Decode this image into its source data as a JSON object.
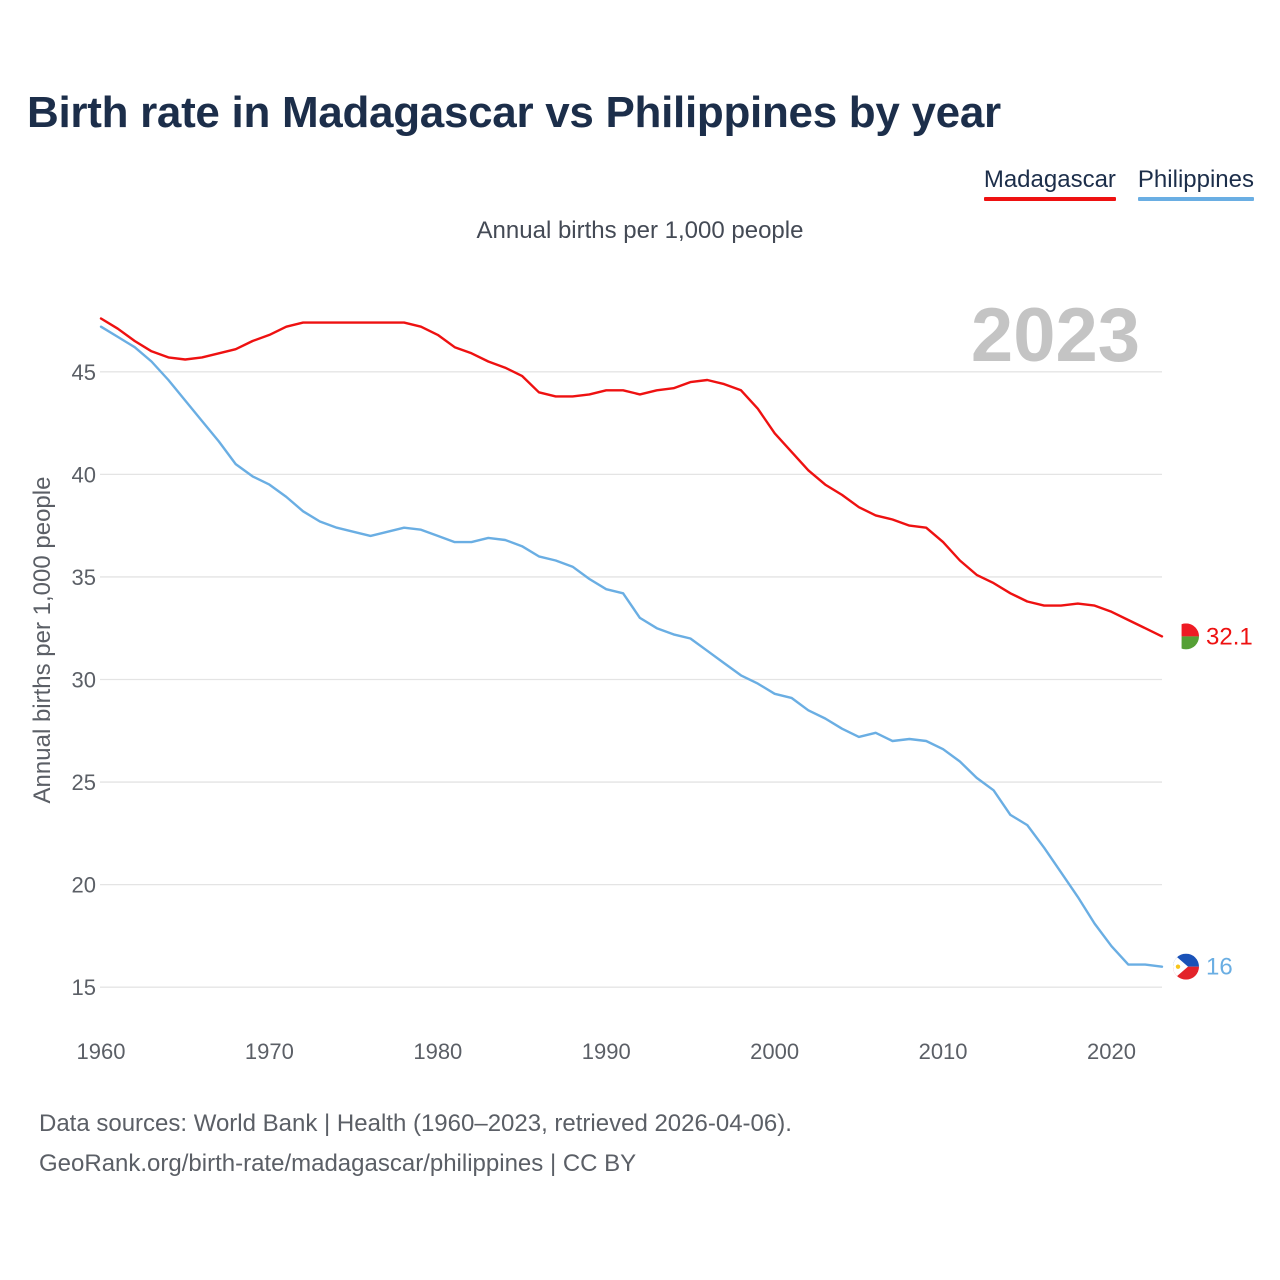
{
  "title": "Birth rate in Madagascar vs Philippines by year",
  "footer": {
    "line1": "Data sources: World Bank | Health (1960–2023, retrieved 2026-04-06).",
    "line2": "GeoRank.org/birth-rate/madagascar/philippines | CC BY"
  },
  "chart_data": {
    "type": "line",
    "title": "Birth rate in Madagascar vs Philippines by year",
    "subtitle": "Annual births per 1,000 people",
    "xlabel": "",
    "ylabel": "Annual births per 1,000 people",
    "year_label": "2023",
    "xlim": [
      1960,
      2023
    ],
    "ylim": [
      13.4,
      48.5
    ],
    "x_ticks": [
      1960,
      1970,
      1980,
      1990,
      2000,
      2010,
      2020
    ],
    "y_ticks": [
      15,
      20,
      25,
      30,
      35,
      40,
      45
    ],
    "grid": true,
    "legend_position": "top-right",
    "x": [
      1960,
      1961,
      1962,
      1963,
      1964,
      1965,
      1966,
      1967,
      1968,
      1969,
      1970,
      1971,
      1972,
      1973,
      1974,
      1975,
      1976,
      1977,
      1978,
      1979,
      1980,
      1981,
      1982,
      1983,
      1984,
      1985,
      1986,
      1987,
      1988,
      1989,
      1990,
      1991,
      1992,
      1993,
      1994,
      1995,
      1996,
      1997,
      1998,
      1999,
      2000,
      2001,
      2002,
      2003,
      2004,
      2005,
      2006,
      2007,
      2008,
      2009,
      2010,
      2011,
      2012,
      2013,
      2014,
      2015,
      2016,
      2017,
      2018,
      2019,
      2020,
      2021,
      2022,
      2023
    ],
    "series": [
      {
        "name": "Madagascar",
        "color": "#ee1111",
        "end_label": "32.1",
        "flag": "madagascar-flag",
        "values": [
          47.6,
          47.1,
          46.5,
          46.0,
          45.7,
          45.6,
          45.7,
          45.9,
          46.1,
          46.5,
          46.8,
          47.2,
          47.4,
          47.4,
          47.4,
          47.4,
          47.4,
          47.4,
          47.4,
          47.2,
          46.8,
          46.2,
          45.9,
          45.5,
          45.2,
          44.8,
          44.0,
          43.8,
          43.8,
          43.9,
          44.1,
          44.1,
          43.9,
          44.1,
          44.2,
          44.5,
          44.6,
          44.4,
          44.1,
          43.2,
          42.0,
          41.1,
          40.2,
          39.5,
          39.0,
          38.4,
          38.0,
          37.8,
          37.5,
          37.4,
          36.7,
          35.8,
          35.1,
          34.7,
          34.2,
          33.8,
          33.6,
          33.6,
          33.7,
          33.6,
          33.3,
          32.9,
          32.5,
          32.1
        ]
      },
      {
        "name": "Philippines",
        "color": "#6aaee3",
        "end_label": "16",
        "flag": "philippines-flag",
        "values": [
          47.2,
          46.7,
          46.2,
          45.5,
          44.6,
          43.6,
          42.6,
          41.6,
          40.5,
          39.9,
          39.5,
          38.9,
          38.2,
          37.7,
          37.4,
          37.2,
          37.0,
          37.2,
          37.4,
          37.3,
          37.0,
          36.7,
          36.7,
          36.9,
          36.8,
          36.5,
          36.0,
          35.8,
          35.5,
          34.9,
          34.4,
          34.2,
          33.0,
          32.5,
          32.2,
          32.0,
          31.4,
          30.8,
          30.2,
          29.8,
          29.3,
          29.1,
          28.5,
          28.1,
          27.6,
          27.2,
          27.4,
          27.0,
          27.1,
          27.0,
          26.6,
          26.0,
          25.2,
          24.6,
          23.4,
          22.9,
          21.8,
          20.6,
          19.4,
          18.1,
          17.0,
          16.1,
          16.1,
          16.0
        ]
      }
    ]
  }
}
